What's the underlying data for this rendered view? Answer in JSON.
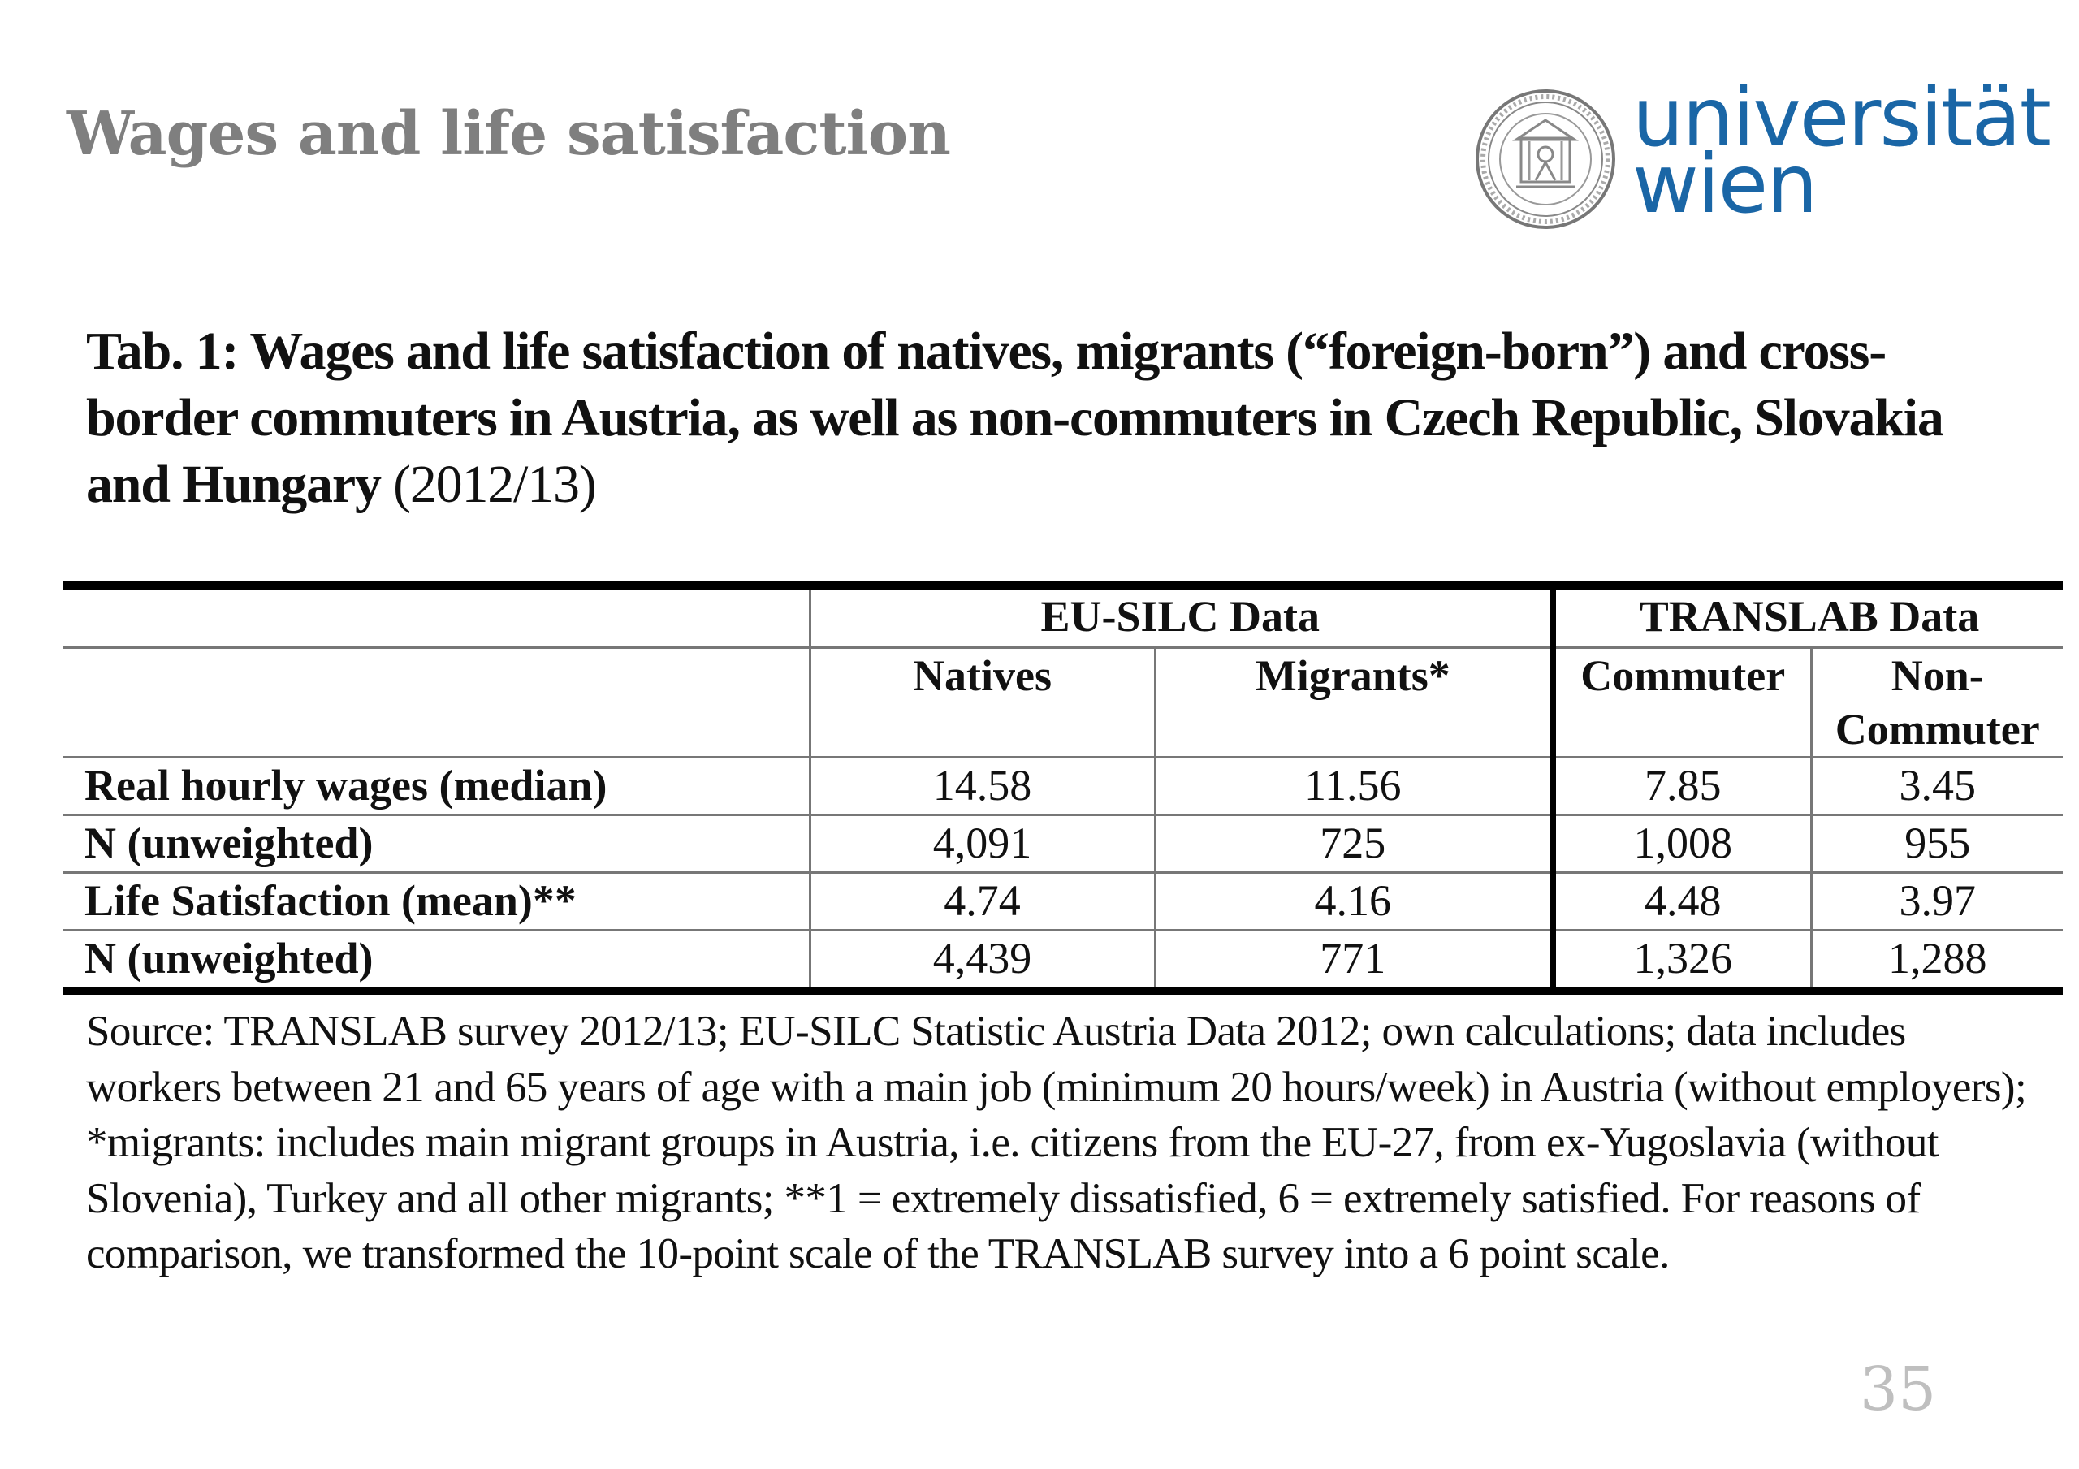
{
  "slide": {
    "title": "Wages and life satisfaction",
    "page_number": "35"
  },
  "logo": {
    "line1": "universität",
    "line2": "wien",
    "seal_icon": "university-seal-icon",
    "color": "#1a66a6"
  },
  "caption": {
    "bold_text": "Tab. 1: Wages and life satisfaction of natives, migrants (“foreign-born”) and cross-border commuters in Austria, as well as non-commuters in Czech Republic, Slovakia and Hungary",
    "plain_text": " (2012/13)"
  },
  "table": {
    "groups": [
      "EU-SILC Data",
      "TRANSLAB Data"
    ],
    "columns": [
      "Natives",
      "Migrants*",
      "Commuter",
      "Non-Commuter"
    ],
    "rows": [
      {
        "label": "Real hourly wages (median)",
        "values": [
          "14.58",
          "11.56",
          "7.85",
          "3.45"
        ]
      },
      {
        "label": "N (unweighted)",
        "values": [
          "4,091",
          "725",
          "1,008",
          "955"
        ]
      },
      {
        "label": "Life Satisfaction (mean)**",
        "values": [
          "4.74",
          "4.16",
          "4.48",
          "3.97"
        ]
      },
      {
        "label": "N (unweighted)",
        "values": [
          "4,439",
          "771",
          "1,326",
          "1,288"
        ]
      }
    ]
  },
  "source_note": "Source: TRANSLAB survey 2012/13; EU-SILC Statistic Austria Data 2012; own calculations; data includes workers between 21 and 65 years of age with a main job (minimum 20 hours/week) in Austria (without employers); *migrants: includes main migrant groups in Austria, i.e. citizens from the EU-27, from ex-Yugoslavia (without Slovenia), Turkey and all other migrants; **1 = extremely dissatisfied, 6 = extremely satisfied. For reasons of comparison, we transformed the 10-point scale of the TRANSLAB survey into a 6 point scale."
}
